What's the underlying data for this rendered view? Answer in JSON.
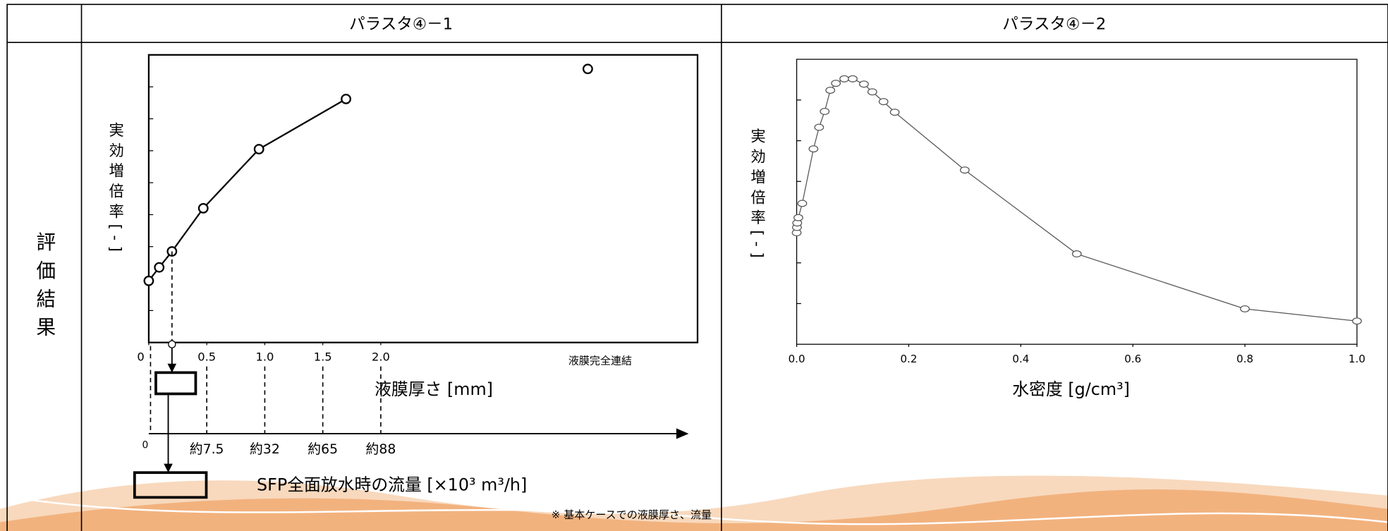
{
  "table": {
    "row_label": "評価結果",
    "columns": [
      "パラスタ④－1",
      "パラスタ④－2"
    ]
  },
  "chart_data": [
    {
      "type": "line",
      "ylabel": "実効増倍率[-]",
      "xlabel": "液膜厚さ [mm]",
      "x": [
        0,
        0.09,
        0.2,
        0.47,
        0.95,
        1.7
      ],
      "series": [
        {
          "color": "#000000",
          "values": [
            1.93,
            2.35,
            2.85,
            4.2,
            6.05,
            7.62
          ]
        }
      ],
      "xlim": [
        0,
        4.73
      ],
      "ylim": [
        0,
        9
      ],
      "xticks": [
        0,
        0.5,
        {
          "value": 1,
          "label": "1.0"
        },
        1.5,
        {
          "value": 2,
          "label": "2.0"
        }
      ],
      "yticks": [
        1,
        2,
        3,
        4,
        5,
        6,
        7,
        8
      ],
      "complete_point": {
        "label": "液膜完全連結",
        "value": 8.56
      },
      "base_case_x": 0.2,
      "flow_axis": {
        "label": "SFP全面放水時の流量 [×10³ m³/h]",
        "ticks": [
          0,
          {
            "value": 0.5,
            "label": "約7.5"
          },
          {
            "value": 1,
            "label": "約32"
          },
          {
            "value": 1.5,
            "label": "約65"
          },
          {
            "value": 2,
            "label": "約88"
          }
        ]
      },
      "note": "※ 基本ケースでの液膜厚さ、流量"
    },
    {
      "type": "line",
      "ylabel": "実効増倍率[-]",
      "xlabel": "水密度 [g/cm³]",
      "x": [
        0,
        0.0005,
        0.001,
        0.003,
        0.01,
        0.03,
        0.04,
        0.05,
        0.06,
        0.07,
        0.085,
        0.1,
        0.12,
        0.135,
        0.155,
        0.175,
        0.3,
        0.5,
        0.8,
        1.0
      ],
      "series": [
        {
          "color": "#555555",
          "values": [
            2.74,
            2.87,
            2.98,
            3.11,
            3.46,
            4.8,
            5.33,
            5.72,
            6.24,
            6.41,
            6.52,
            6.52,
            6.39,
            6.2,
            5.96,
            5.7,
            4.28,
            2.22,
            0.87,
            0.57
          ]
        }
      ],
      "xlim": [
        0,
        1
      ],
      "ylim": [
        0,
        7
      ],
      "xticks": [
        {
          "value": 0,
          "label": "0.0"
        },
        0.2,
        0.4,
        0.6,
        0.8,
        {
          "value": 1,
          "label": "1.0"
        }
      ],
      "yticks": [
        1,
        2,
        3,
        4,
        5,
        6
      ]
    }
  ]
}
